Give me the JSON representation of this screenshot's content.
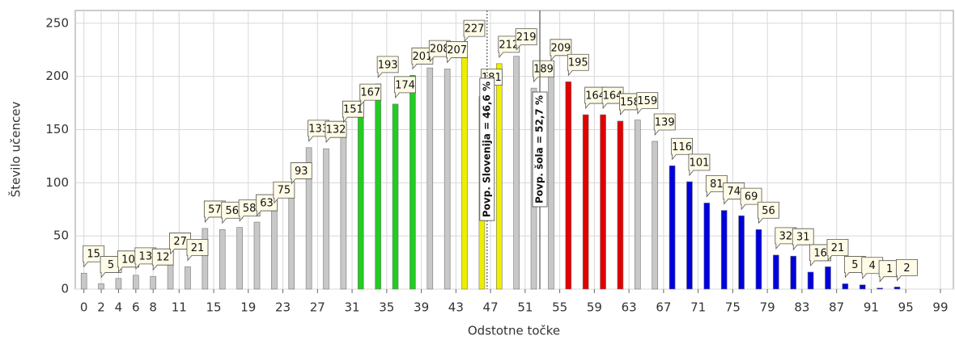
{
  "chart_data": {
    "type": "bar",
    "xlabel": "Odstotne točke",
    "ylabel": "Število učencev",
    "x": [
      0,
      2,
      4,
      6,
      8,
      10,
      12,
      14,
      16,
      18,
      20,
      22,
      24,
      26,
      28,
      30,
      32,
      34,
      36,
      38,
      40,
      42,
      44,
      46,
      48,
      50,
      52,
      54,
      56,
      58,
      60,
      62,
      64,
      66,
      68,
      70,
      72,
      74,
      76,
      78,
      80,
      82,
      84,
      86,
      88,
      90,
      92,
      94
    ],
    "values": [
      15,
      5,
      10,
      13,
      12,
      27,
      21,
      57,
      56,
      58,
      63,
      75,
      93,
      133,
      132,
      151,
      167,
      193,
      174,
      201,
      208,
      207,
      227,
      181,
      212,
      219,
      189,
      209,
      195,
      164,
      164,
      158,
      159,
      139,
      116,
      101,
      81,
      74,
      69,
      56,
      32,
      31,
      16,
      21,
      5,
      4,
      1,
      2
    ],
    "colors": [
      "#c8c8c8",
      "#c8c8c8",
      "#c8c8c8",
      "#c8c8c8",
      "#c8c8c8",
      "#c8c8c8",
      "#c8c8c8",
      "#c8c8c8",
      "#c8c8c8",
      "#c8c8c8",
      "#c8c8c8",
      "#c8c8c8",
      "#c8c8c8",
      "#c8c8c8",
      "#c8c8c8",
      "#c8c8c8",
      "#22cc22",
      "#22cc22",
      "#22cc22",
      "#22cc22",
      "#c8c8c8",
      "#c8c8c8",
      "#eeee00",
      "#eeee00",
      "#eeee00",
      "#c8c8c8",
      "#c8c8c8",
      "#c8c8c8",
      "#e00000",
      "#e00000",
      "#e00000",
      "#e00000",
      "#c8c8c8",
      "#c8c8c8",
      "#0000dd",
      "#0000dd",
      "#0000dd",
      "#0000dd",
      "#0000dd",
      "#0000dd",
      "#0000dd",
      "#0000dd",
      "#0000dd",
      "#0000dd",
      "#0000dd",
      "#0000dd",
      "#0000dd",
      "#0000dd"
    ],
    "xlim": [
      -1,
      100.5
    ],
    "xticks": [
      0,
      2,
      4,
      6,
      8,
      11,
      15,
      19,
      23,
      27,
      31,
      35,
      39,
      43,
      47,
      51,
      55,
      59,
      63,
      67,
      71,
      75,
      79,
      83,
      87,
      91,
      95,
      99
    ],
    "ylim": [
      0,
      262
    ],
    "yticks": [
      0,
      50,
      100,
      150,
      200,
      250
    ],
    "grid": true,
    "annotations": [
      {
        "x": 46.6,
        "text": "Povp. Slovenija = 46,6 %",
        "style": "dashed"
      },
      {
        "x": 52.7,
        "text": "Povp. šola = 52,7 %",
        "style": "solid"
      }
    ]
  }
}
